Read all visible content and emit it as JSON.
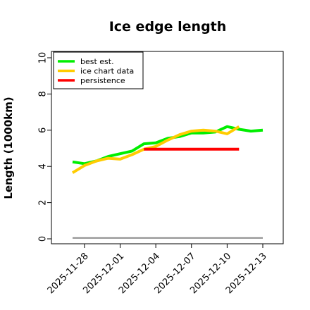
{
  "chart_data": {
    "type": "line",
    "title": "Ice edge length",
    "xlabel": "",
    "ylabel": "Length (1000km)",
    "ylim": [
      0,
      10
    ],
    "yticks": [
      0,
      2,
      4,
      6,
      8,
      10
    ],
    "x_tick_labels": [
      "2025-11-28",
      "2025-12-01",
      "2025-12-04",
      "2025-12-07",
      "2025-12-10",
      "2025-12-13"
    ],
    "x_tick_values": [
      1,
      4,
      7,
      10,
      13,
      16
    ],
    "xlim": [
      -0.1,
      17.0
    ],
    "grid": false,
    "legend_position": "top-left",
    "series": [
      {
        "name": "best est.",
        "color": "#00ee00",
        "x": [
          0,
          1,
          2,
          3,
          4,
          5,
          6,
          7,
          8,
          9,
          10,
          11,
          12,
          13,
          14,
          15,
          16
        ],
        "values": [
          4.25,
          4.15,
          4.3,
          4.55,
          4.7,
          4.85,
          5.25,
          5.3,
          5.55,
          5.65,
          5.85,
          5.85,
          5.9,
          6.2,
          6.05,
          5.95,
          6.0
        ]
      },
      {
        "name": "ice chart data",
        "color": "#ffcc00",
        "x": [
          0,
          1,
          2,
          3,
          4,
          5,
          6,
          7,
          8,
          9,
          10,
          11,
          12,
          13,
          14
        ],
        "values": [
          3.65,
          4.05,
          4.3,
          4.45,
          4.4,
          4.65,
          4.95,
          5.1,
          5.45,
          5.75,
          5.95,
          6.0,
          5.95,
          5.8,
          6.2
        ]
      },
      {
        "name": "persistence",
        "color": "#ff0000",
        "x": [
          6,
          14
        ],
        "values": [
          4.95,
          4.95
        ]
      },
      {
        "name": "",
        "color": "#888888",
        "x": [
          0,
          16
        ],
        "values": [
          0.05,
          0.05
        ]
      }
    ]
  }
}
